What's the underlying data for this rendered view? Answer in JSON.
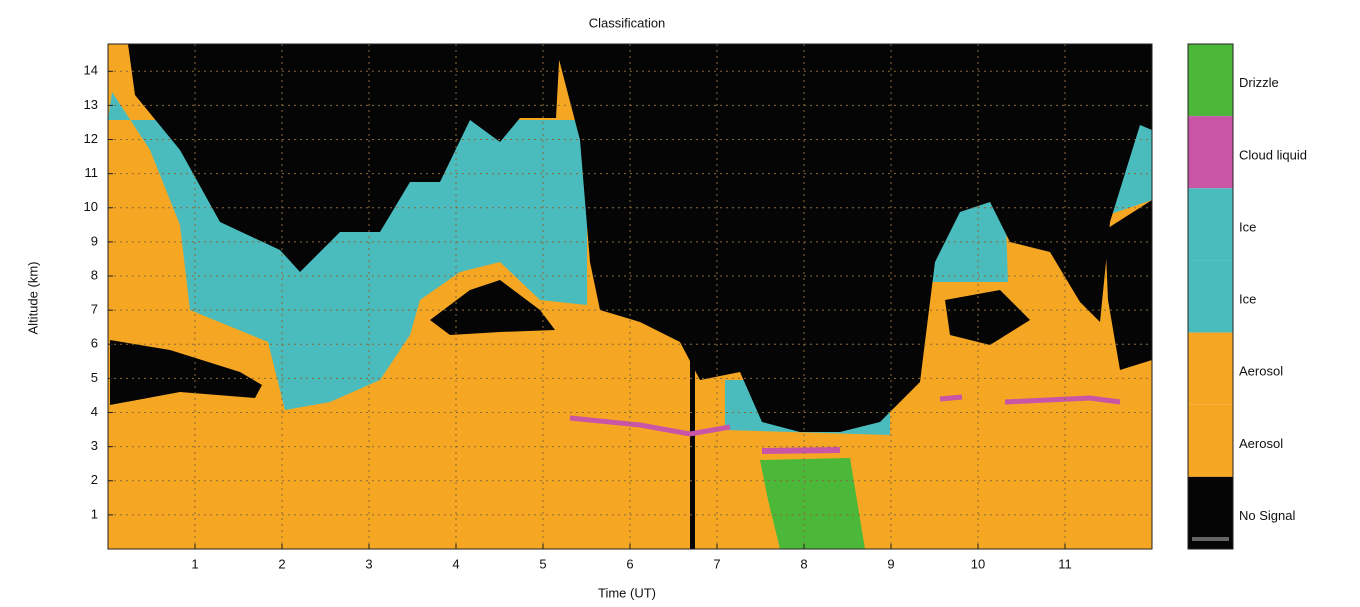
{
  "chart_data": {
    "type": "classification",
    "title": "Classification",
    "x_label": "Time (UT)",
    "y_label": "Altitude (km)",
    "xlim": [
      0,
      12
    ],
    "xticks": [
      1,
      2,
      3,
      4,
      5,
      6,
      7,
      8,
      9,
      10,
      11
    ],
    "ylim": [
      0,
      14.8
    ],
    "yticks": [
      1,
      2,
      3,
      4,
      5,
      6,
      7,
      8,
      9,
      10,
      11,
      12,
      13,
      14
    ],
    "grid": true,
    "classes": [
      {
        "name": "Drizzle",
        "color": "#4cb83a"
      },
      {
        "name": "Cloud liquid",
        "color": "#c855a6"
      },
      {
        "name": "Ice",
        "color": "#4bbcbe"
      },
      {
        "name": "Ice",
        "color": "#4bbcbe"
      },
      {
        "name": "Aerosol",
        "color": "#f5a623"
      },
      {
        "name": "Aerosol",
        "color": "#f5a623"
      },
      {
        "name": "No Signal",
        "color": "#050505"
      }
    ]
  }
}
